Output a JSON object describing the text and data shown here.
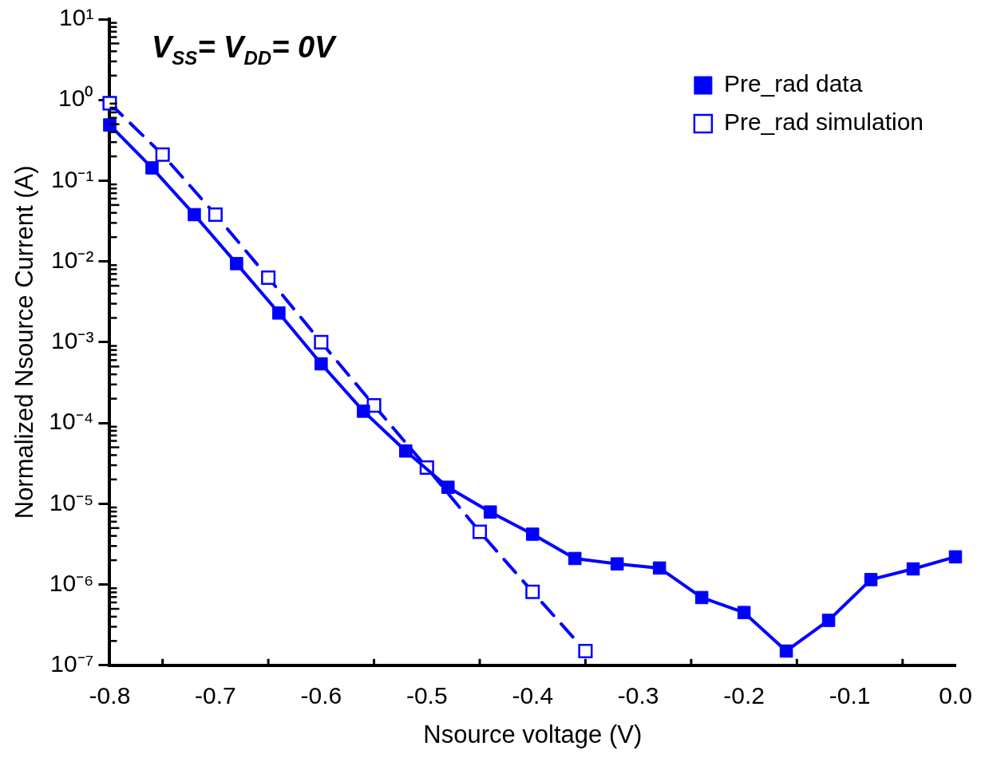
{
  "chart_data": {
    "type": "line",
    "xlabel": "Nsource voltage (V)",
    "ylabel": "Normalized Nsource Current (A)",
    "annotations": [
      "V$_{SS}$= V$_{DD}$= 0V"
    ],
    "log": "y",
    "legend": "top right",
    "marker": "square",
    "grid": false,
    "xlim": [
      -0.8,
      0.0
    ],
    "xticks": [
      {
        "value": -0.8,
        "label": "-0.8"
      },
      {
        "value": -0.7,
        "label": "-0.7"
      },
      {
        "value": -0.6,
        "label": "-0.6"
      },
      {
        "value": -0.5,
        "label": "-0.5"
      },
      {
        "value": -0.4,
        "label": "-0.4"
      },
      {
        "value": -0.3,
        "label": "-0.3"
      },
      {
        "value": -0.2,
        "label": "-0.2"
      },
      {
        "value": -0.1,
        "label": "-0.1"
      },
      {
        "value": 0,
        "label": "0.0"
      }
    ],
    "ylim": [
      1e-07,
      10
    ],
    "yticks": [
      {
        "value": 1e-07,
        "label": "10⁻⁷"
      },
      {
        "value": 1e-06,
        "label": "10⁻⁶"
      },
      {
        "value": 1e-05,
        "label": "10⁻⁵"
      },
      {
        "value": 0.0001,
        "label": "10⁻⁴"
      },
      {
        "value": 0.001,
        "label": "10⁻³"
      },
      {
        "value": 0.01,
        "label": "10⁻²"
      },
      {
        "value": 0.1,
        "label": "10⁻¹"
      },
      {
        "value": 1,
        "label": "10⁰"
      },
      {
        "value": 10,
        "label": "10¹"
      }
    ],
    "series": [
      {
        "name": "Pre_rad data",
        "color": "#0000ff",
        "line_style": "solid",
        "x": [
          -0.8,
          -0.76,
          -0.72,
          -0.68,
          -0.64,
          -0.6,
          -0.56,
          -0.52,
          -0.48,
          -0.44,
          -0.4,
          -0.36,
          -0.32,
          -0.28,
          -0.24,
          -0.2,
          -0.16,
          -0.12,
          -0.08,
          -0.04,
          0.0
        ],
        "values": [
          0.49,
          0.144,
          0.038,
          0.0094,
          0.0023,
          0.00054,
          0.00014,
          4.5e-05,
          1.6e-05,
          7.9e-06,
          4.2e-06,
          2.1e-06,
          1.8e-06,
          1.6e-06,
          6.9e-07,
          4.5e-07,
          1.5e-07,
          3.6e-07,
          1.15e-06,
          1.56e-06,
          2.2e-06
        ]
      },
      {
        "name": "Pre_rad simulation",
        "color": "#0000ff",
        "line_style": "dashed",
        "x": [
          -0.8,
          -0.75,
          -0.7,
          -0.65,
          -0.6,
          -0.55,
          -0.5,
          -0.45,
          -0.4,
          -0.35
        ],
        "values": [
          0.91,
          0.21,
          0.038,
          0.0063,
          0.001,
          0.000165,
          2.8e-05,
          4.5e-06,
          8.1e-07,
          1.5e-07
        ]
      }
    ]
  }
}
